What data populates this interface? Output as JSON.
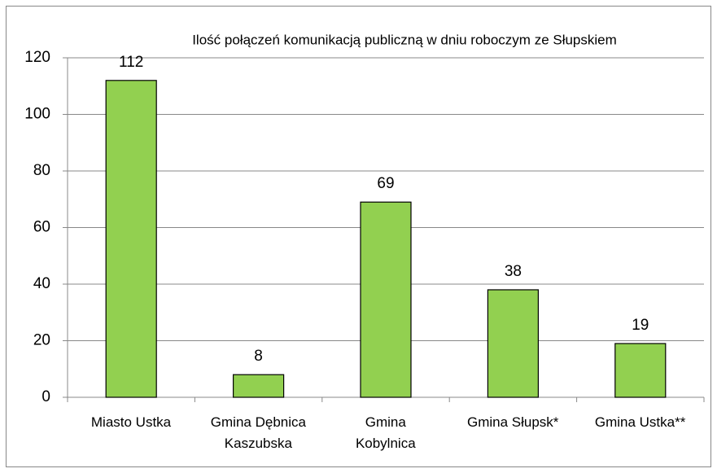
{
  "chart_data": {
    "type": "bar",
    "title": "Ilość połączeń komunikacją publiczną w dniu roboczym ze Słupskiem",
    "categories": [
      "Miasto Ustka",
      "Gmina Dębnica\nKaszubska",
      "Gmina\nKobylnica",
      "Gmina Słupsk*",
      "Gmina Ustka**"
    ],
    "values": [
      112,
      8,
      69,
      38,
      19
    ],
    "color": "#92d050",
    "ylim": [
      0,
      120
    ],
    "yticks": [
      0,
      20,
      40,
      60,
      80,
      100,
      120
    ],
    "grid": true
  }
}
